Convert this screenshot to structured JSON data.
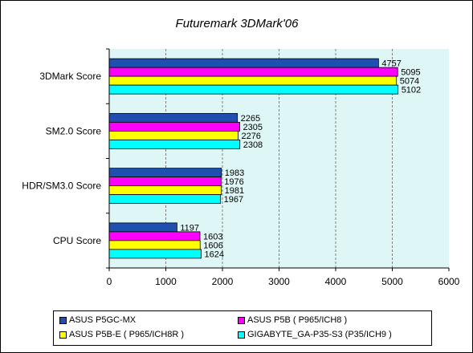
{
  "chart_data": {
    "type": "bar",
    "orientation": "horizontal",
    "title": "Futuremark 3DMark'06",
    "categories": [
      "3DMark Score",
      "SM2.0 Score",
      "HDR/SM3.0 Score",
      "CPU Score"
    ],
    "series": [
      {
        "name": "ASUS P5GC-MX",
        "color": "#1f50b0",
        "values": [
          4757,
          2265,
          1983,
          1197
        ]
      },
      {
        "name": "ASUS P5B ( P965/ICH8 )",
        "color": "#ff00ff",
        "values": [
          5095,
          2305,
          1976,
          1603
        ]
      },
      {
        "name": "ASUS P5B-E ( P965/ICH8R )",
        "color": "#ffff00",
        "values": [
          5074,
          2276,
          1981,
          1606
        ]
      },
      {
        "name": "GIGABYTE_GA-P35-S3 (P35/ICH9 )",
        "color": "#00ffff",
        "values": [
          5102,
          2308,
          1967,
          1624
        ]
      }
    ],
    "xlim": [
      0,
      6000
    ],
    "xticks": [
      0,
      1000,
      2000,
      3000,
      4000,
      5000,
      6000
    ],
    "grid": true,
    "legend_position": "bottom",
    "plot_background": "#dff6f6"
  }
}
